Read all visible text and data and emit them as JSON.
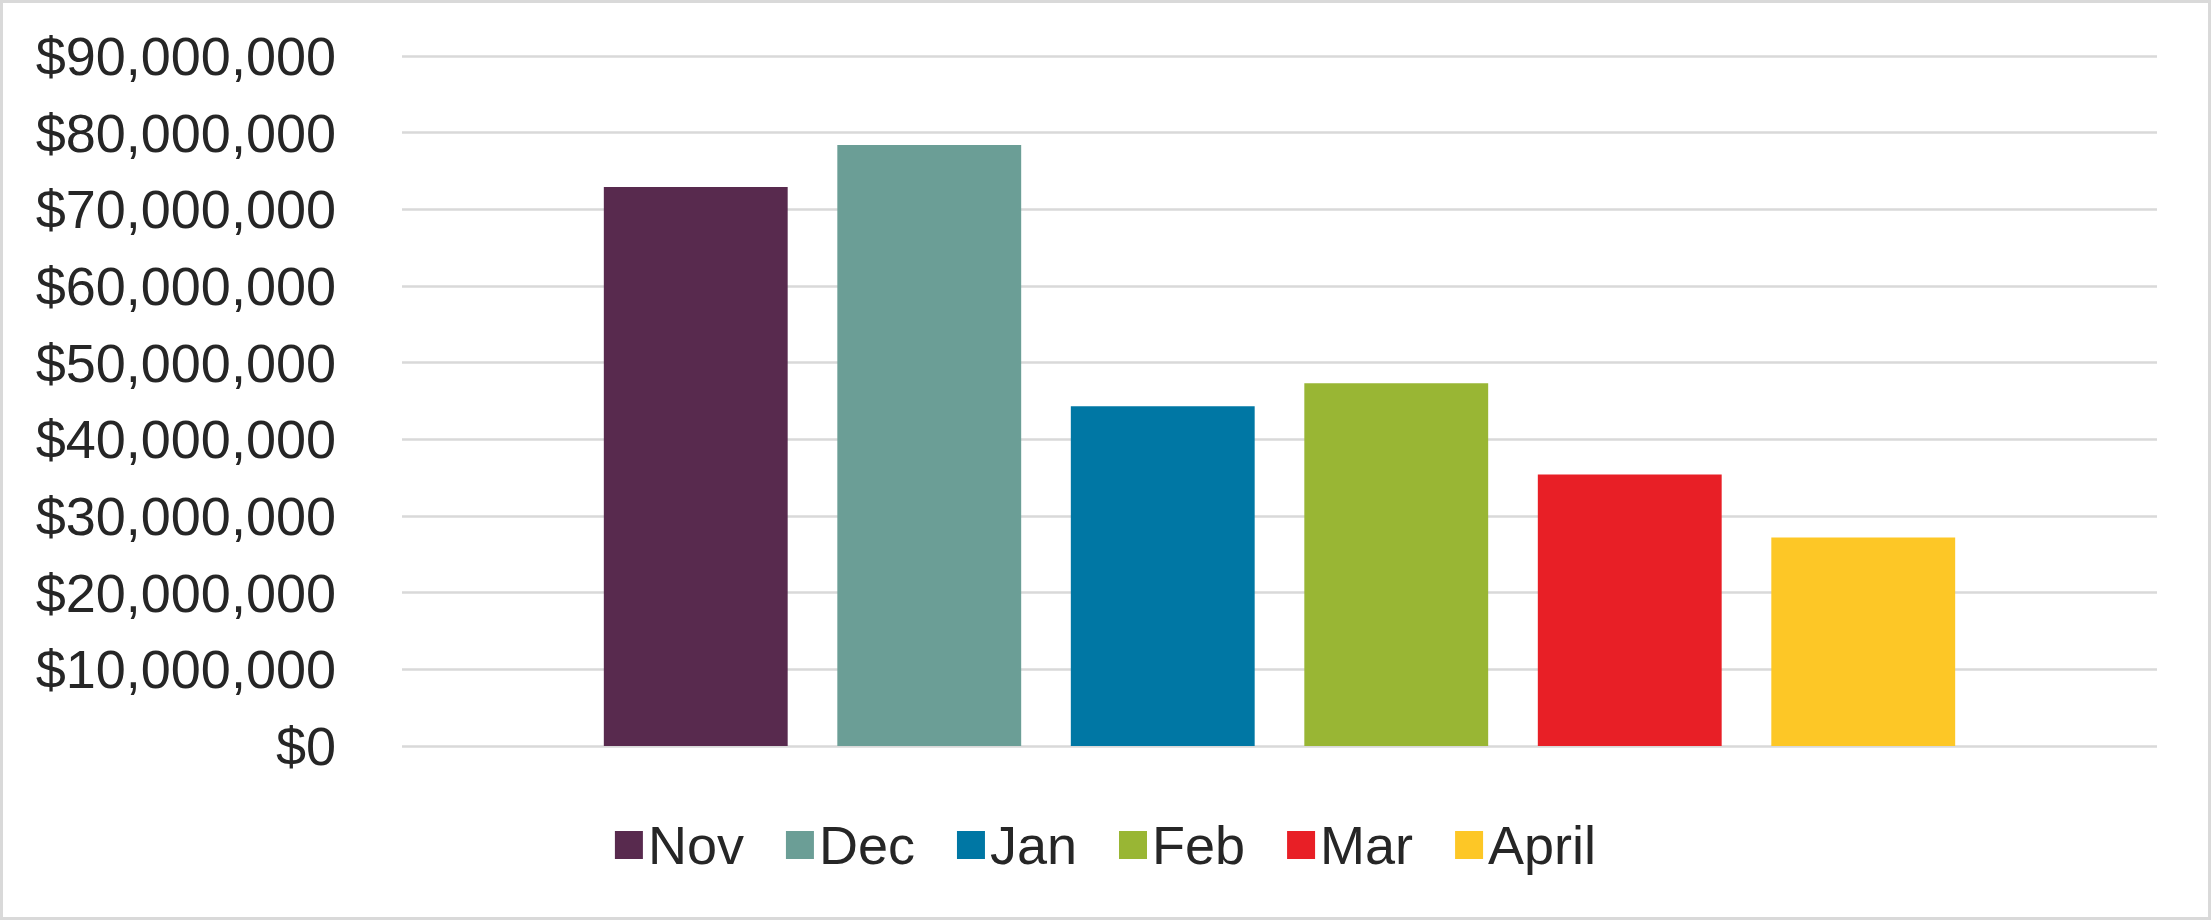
{
  "chart_data": {
    "type": "bar",
    "categories": [
      null
    ],
    "series": [
      {
        "name": "Nov",
        "color": "#582a4e",
        "values": [
          72900000
        ]
      },
      {
        "name": "Dec",
        "color": "#6b9e96",
        "values": [
          78400000
        ]
      },
      {
        "name": "Jan",
        "color": "#0077a4",
        "values": [
          44300000
        ]
      },
      {
        "name": "Feb",
        "color": "#99b634",
        "values": [
          47300000
        ]
      },
      {
        "name": "Mar",
        "color": "#e81f26",
        "values": [
          35400000
        ]
      },
      {
        "name": "April",
        "color": "#fdc726",
        "values": [
          27200000
        ]
      }
    ],
    "ylim": [
      0,
      90000000
    ],
    "yticks": [
      {
        "value": 0,
        "label": "$0"
      },
      {
        "value": 10000000,
        "label": "$10,000,000"
      },
      {
        "value": 20000000,
        "label": "$20,000,000"
      },
      {
        "value": 30000000,
        "label": "$30,000,000"
      },
      {
        "value": 40000000,
        "label": "$40,000,000"
      },
      {
        "value": 50000000,
        "label": "$50,000,000"
      },
      {
        "value": 60000000,
        "label": "$60,000,000"
      },
      {
        "value": 70000000,
        "label": "$70,000,000"
      },
      {
        "value": 80000000,
        "label": "$80,000,000"
      },
      {
        "value": 90000000,
        "label": "$90,000,000"
      }
    ],
    "grid": "y",
    "legend": "bottom",
    "tick_labels": "y"
  }
}
